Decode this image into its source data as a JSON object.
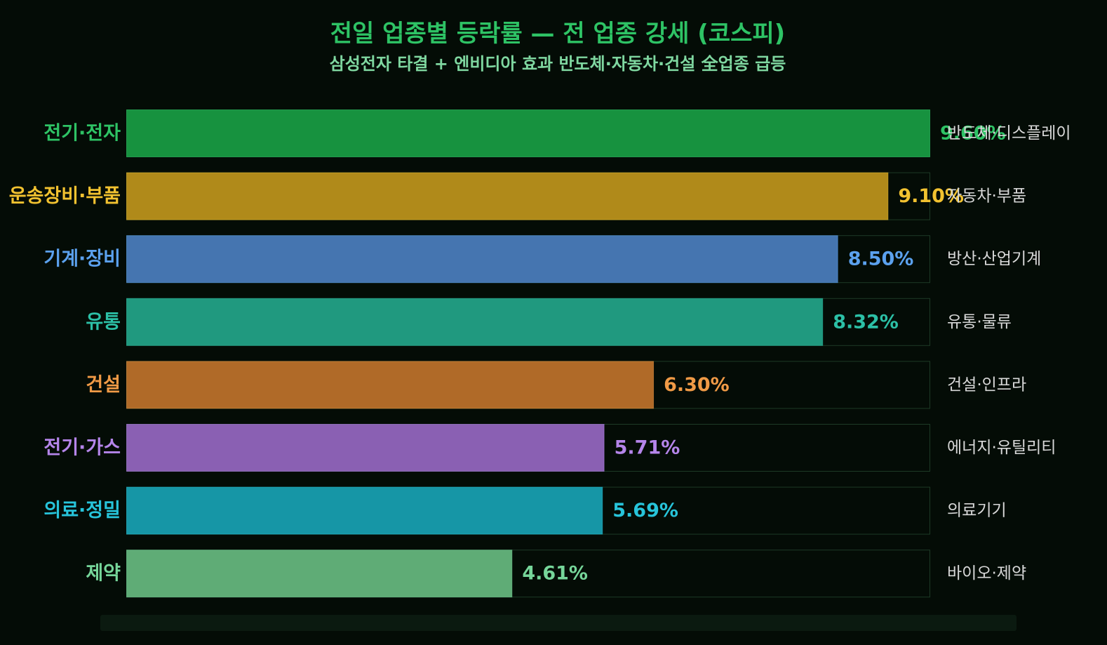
{
  "title": "전일 업종별 등락률 — 전 업종 강세 (코스피)",
  "subtitle": "삼성전자 타결 + 엔비디아 효과 반도체·자동차·건설 全업종 급등",
  "chart_data": {
    "type": "bar",
    "orientation": "horizontal",
    "categories": [
      "전기·전자",
      "운송장비·부품",
      "기계·장비",
      "유통",
      "건설",
      "전기·가스",
      "의료·정밀",
      "제약"
    ],
    "values": [
      9.6,
      9.1,
      8.5,
      8.32,
      6.3,
      5.71,
      5.69,
      4.61
    ],
    "value_labels": [
      "9.60%",
      "9.10%",
      "8.50%",
      "8.32%",
      "6.30%",
      "5.71%",
      "5.69%",
      "4.61%"
    ],
    "descriptions": [
      "반도체·디스플레이",
      "자동차·부품",
      "방산·산업기계",
      "유통·물류",
      "건설·인프라",
      "에너지·유틸리티",
      "의료기기",
      "바이오·제약"
    ],
    "xlim": [
      0,
      9.6
    ],
    "grid": false,
    "colors": {
      "bars": [
        "#17923f",
        "#b08a1a",
        "#4575b0",
        "#20997f",
        "#b06a28",
        "#8a60b3",
        "#1696a6",
        "#5fac76"
      ],
      "labels": [
        "#2ec365",
        "#f2c230",
        "#5ba1ee",
        "#2cc0a6",
        "#f09a46",
        "#b585ea",
        "#27c4da",
        "#76d69a"
      ],
      "track_border": "#1d3a26",
      "description": "#d8d8d8"
    }
  }
}
